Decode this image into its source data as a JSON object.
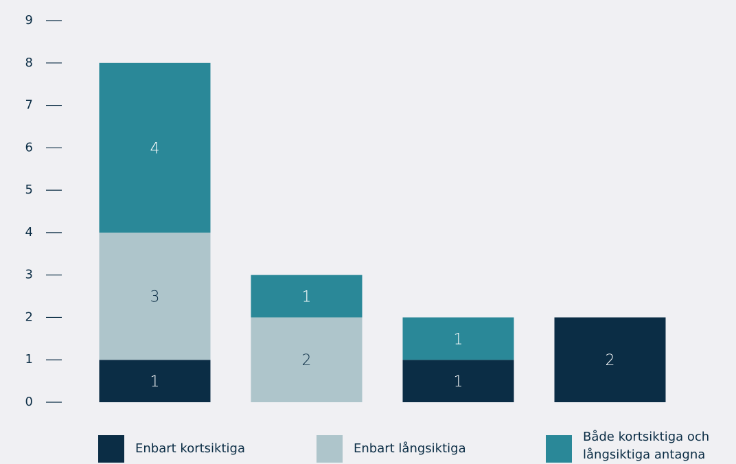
{
  "chart_data": {
    "type": "stacked_bar",
    "categories": [
      null,
      null,
      null,
      null
    ],
    "series": [
      {
        "name": "Enbart kortsiktiga",
        "color": "#0b2d45",
        "label_color": "#ffffff",
        "values": [
          1,
          0,
          1,
          2
        ]
      },
      {
        "name": "Enbart långsiktiga",
        "color": "#aec5cb",
        "label_color": "#0b2d45",
        "values": [
          3,
          2,
          0,
          0
        ]
      },
      {
        "name": "Både kortsiktiga och långsiktiga antagna",
        "color": "#2a8898",
        "label_color": "#ffffff",
        "values": [
          4,
          1,
          1,
          0
        ]
      }
    ],
    "ylim": [
      0,
      9
    ],
    "yticks": [
      0,
      1,
      2,
      3,
      4,
      5,
      6,
      7,
      8,
      9
    ],
    "grid": false,
    "legend": "bottom"
  }
}
